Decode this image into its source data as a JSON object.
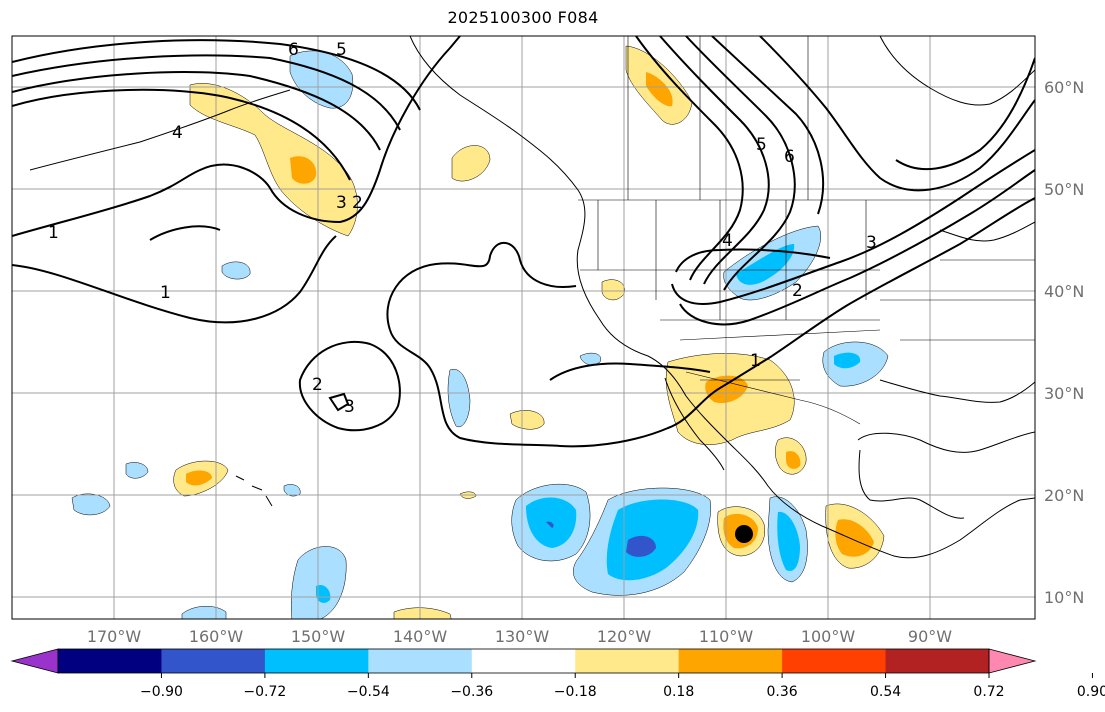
{
  "title": "2025100300 F084",
  "lon_labels": [
    "170°W",
    "160°W",
    "150°W",
    "140°W",
    "130°W",
    "120°W",
    "110°W",
    "100°W",
    "90°W"
  ],
  "lat_labels": [
    "60°N",
    "50°N",
    "40°N",
    "30°N",
    "20°N",
    "10°N"
  ],
  "colorbar": {
    "tick_labels": [
      "−0.90",
      "−0.72",
      "−0.54",
      "−0.36",
      "−0.18",
      "0.18",
      "0.36",
      "0.54",
      "0.72",
      "0.90"
    ],
    "colors": [
      "#9933cc",
      "#000080",
      "#3355cc",
      "#00bfff",
      "#aadfff",
      "#ffffff",
      "#ffe98a",
      "#ffa500",
      "#ff4000",
      "#b22222",
      "#ff88b0"
    ]
  },
  "contour_labels": [
    "6",
    "5",
    "1",
    "1",
    "4",
    "3",
    "2",
    "2",
    "3",
    "5",
    "6",
    "4",
    "3",
    "2",
    "1"
  ],
  "colors": {
    "contour": "#000000",
    "coast": "#000000",
    "grid": "#a0a0a0",
    "tick_label": "#707070"
  },
  "marker": "storm-center-dot"
}
